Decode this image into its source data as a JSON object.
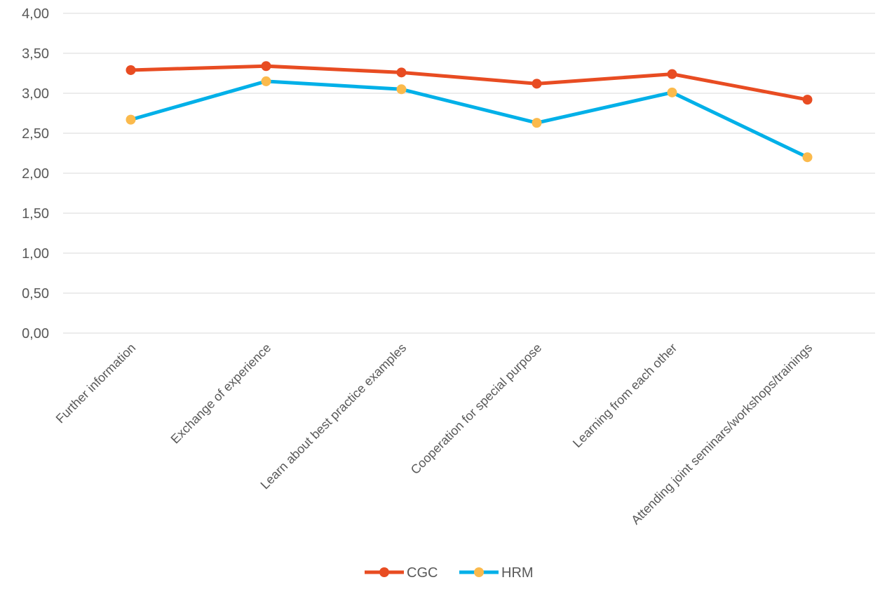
{
  "chart_data": {
    "type": "line",
    "categories": [
      "Further information",
      "Exchange of experience",
      "Learn about best practice examples",
      "Cooperation for special purpose",
      "Learning from each other",
      "Attending joint seminars/workshops/trainings"
    ],
    "series": [
      {
        "name": "CGC",
        "values": [
          3.29,
          3.34,
          3.26,
          3.12,
          3.24,
          2.92
        ],
        "line_color": "#E84C22",
        "marker_color": "#E84C22"
      },
      {
        "name": "HRM",
        "values": [
          2.67,
          3.15,
          3.05,
          2.63,
          3.01,
          2.2
        ],
        "line_color": "#00B0E8",
        "marker_color": "#FBBA4C"
      }
    ],
    "yticks": [
      "0,00",
      "0,50",
      "1,00",
      "1,50",
      "2,00",
      "2,50",
      "3,00",
      "3,50",
      "4,00"
    ],
    "ylim": [
      0,
      4
    ],
    "grid": true,
    "gridline_color": "#D9D9D9",
    "legend_position": "bottom"
  }
}
